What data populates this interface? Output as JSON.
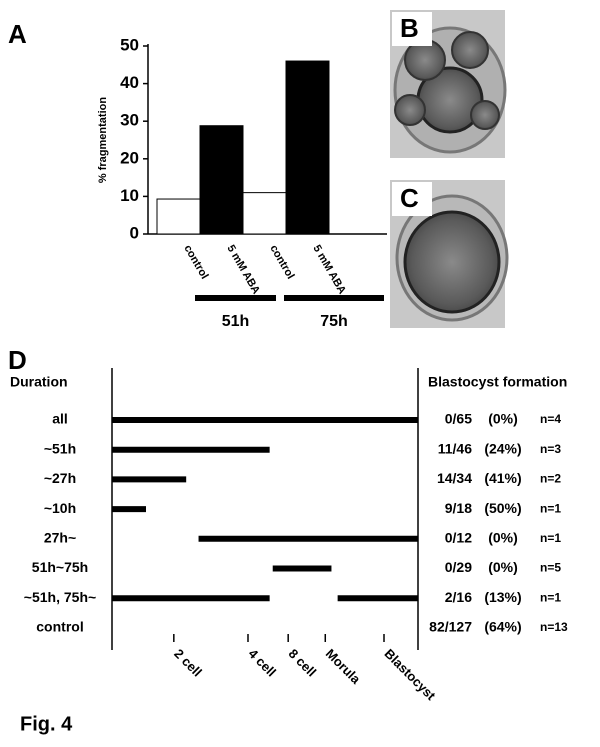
{
  "figure": {
    "caption": "Fig. 4",
    "panels": [
      "A",
      "B",
      "C",
      "D"
    ]
  },
  "chart_data": {
    "type": "bar",
    "y_label": "% fragmentation",
    "categories": [
      "control",
      "5 mM ABA",
      "control",
      "5 mM ABA"
    ],
    "values": [
      9.3,
      28.8,
      11,
      46
    ],
    "colors": [
      "#ffffff",
      "#000000",
      "#ffffff",
      "#000000"
    ],
    "ylim": [
      0,
      50
    ],
    "yticks": [
      0,
      10,
      20,
      30,
      40,
      50
    ],
    "groups": [
      "51h",
      "75h"
    ]
  },
  "timeline": {
    "headers": [
      "Duration",
      "Blastocyst formation"
    ],
    "xlim": [
      0,
      99
    ],
    "stages": [
      {
        "value": 20,
        "label": "2 cell"
      },
      {
        "value": 44,
        "label": "4 cell"
      },
      {
        "value": 57,
        "label": "8 cell"
      },
      {
        "value": 69,
        "label": "Morula"
      },
      {
        "value": 88,
        "label": "Blastocyst"
      }
    ],
    "rows": [
      {
        "label": "all",
        "segments": [
          [
            0,
            99
          ]
        ],
        "ratio": "0/65",
        "percent": "(0%)",
        "n": "n=4"
      },
      {
        "label": "~51h",
        "segments": [
          [
            0,
            51
          ]
        ],
        "ratio": "11/46",
        "percent": "(24%)",
        "n": "n=3"
      },
      {
        "label": "~27h",
        "segments": [
          [
            0,
            24
          ]
        ],
        "ratio": "14/34",
        "percent": "(41%)",
        "n": "n=2"
      },
      {
        "label": "~10h",
        "segments": [
          [
            0,
            11
          ]
        ],
        "ratio": "9/18",
        "percent": "(50%)",
        "n": "n=1"
      },
      {
        "label": "27h~",
        "segments": [
          [
            28,
            99
          ]
        ],
        "ratio": "0/12",
        "percent": "(0%)",
        "n": "n=1"
      },
      {
        "label": "51h~75h",
        "segments": [
          [
            52,
            71
          ]
        ],
        "ratio": "0/29",
        "percent": "(0%)",
        "n": "n=5"
      },
      {
        "label": "~51h, 75h~",
        "segments": [
          [
            0,
            51
          ],
          [
            73,
            99
          ]
        ],
        "ratio": "2/16",
        "percent": "(13%)",
        "n": "n=1"
      },
      {
        "label": "control",
        "segments": [],
        "ratio": "82/127",
        "percent": "(64%)",
        "n": "n=13"
      }
    ]
  }
}
